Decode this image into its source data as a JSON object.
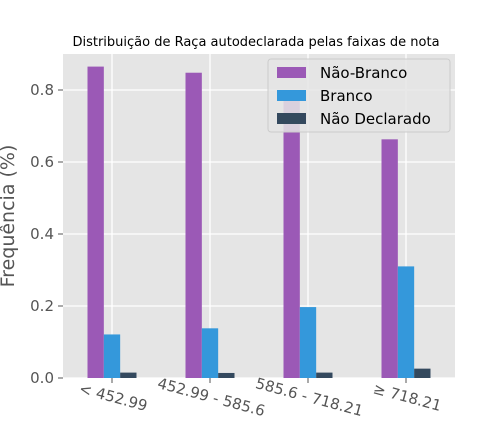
{
  "chart_data": {
    "type": "bar",
    "title": "Distribuição de Raça autodeclarada pelas faixas de nota",
    "xlabel": "",
    "ylabel": "Frequência (%)",
    "categories": [
      "< 452.99",
      "452.99 - 585.6",
      "585.6 - 718.21",
      "≥ 718.21"
    ],
    "series": [
      {
        "name": "Não-Branco",
        "color": "#9b59b6",
        "values": [
          0.865,
          0.848,
          0.788,
          0.663
        ]
      },
      {
        "name": "Branco",
        "color": "#3498db",
        "values": [
          0.121,
          0.138,
          0.197,
          0.31
        ]
      },
      {
        "name": "Não Declarado",
        "color": "#34495e",
        "values": [
          0.015,
          0.014,
          0.015,
          0.026
        ]
      }
    ],
    "ylim": [
      0,
      0.9
    ],
    "yticks": [
      "0.0",
      "0.2",
      "0.4",
      "0.6",
      "0.8"
    ],
    "grid": true,
    "legend_position": "top-right",
    "style": {
      "background": "#e5e5e5",
      "grid_color": "#ffffff"
    }
  }
}
